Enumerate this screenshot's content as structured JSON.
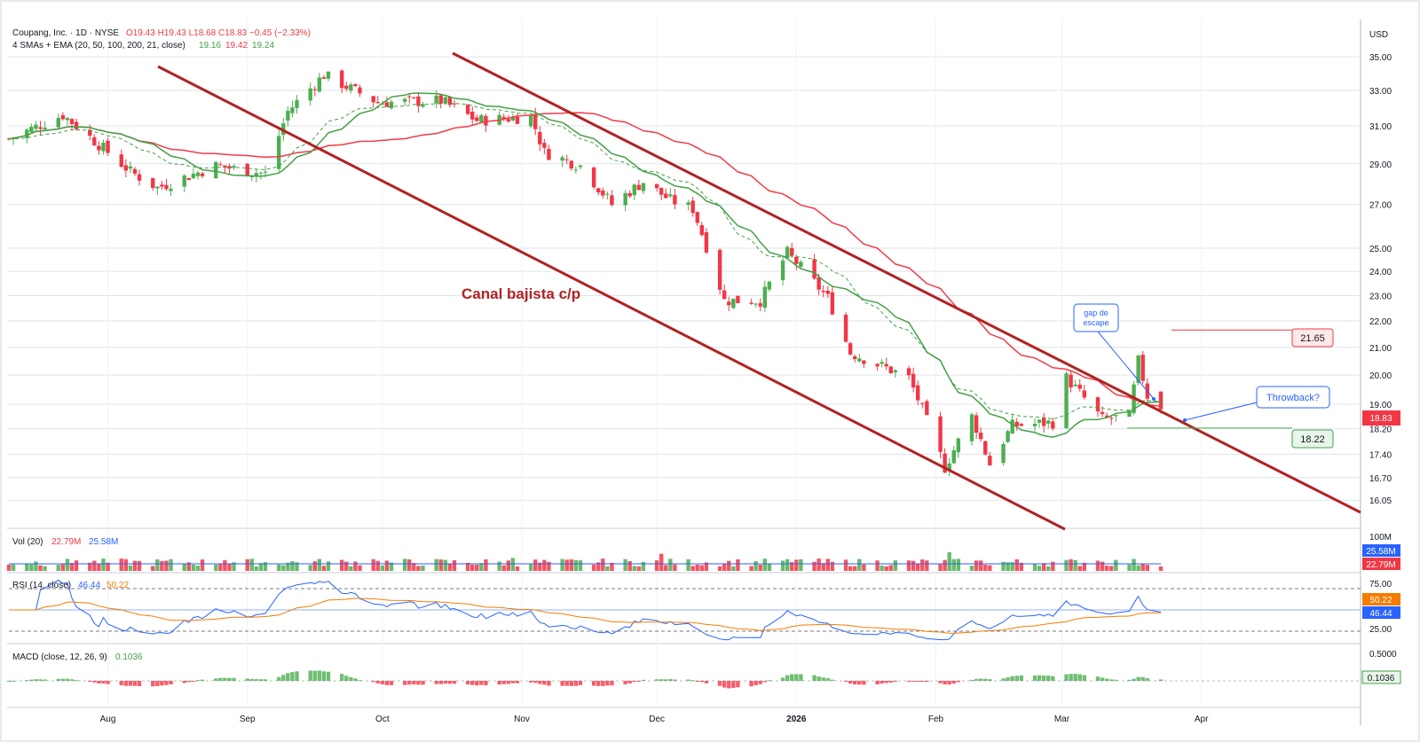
{
  "colors": {
    "up": "#4caf50",
    "down": "#f23645",
    "sma20": "#43a047",
    "sma50": "#ef3b46",
    "ema21": "#43a047",
    "channel": "#b22222",
    "rsi": "#2962ff",
    "rsi_ma": "#f57c00",
    "vol_ma": "#2962ff",
    "axis_text": "#131722",
    "grid": "#e0e3eb",
    "callout_blue": "#2962ff"
  },
  "header": {
    "symbol_line": "Coupang, Inc. · 1D · NYSE",
    "ohlc": "O19.43  H19.43  L18.68  C18.83  −0.45 (−2.33%)",
    "ma_label": "4 SMAs + EMA (20, 50, 100, 200, 21, close)",
    "ma_v1": "19.16",
    "ma_v2": "19.42",
    "ma_v3": "19.24"
  },
  "axis": {
    "currency": "USD",
    "price_ticks": [
      "35.00",
      "33.00",
      "31.00",
      "29.00",
      "27.00",
      "25.00",
      "24.00",
      "23.00",
      "22.00",
      "21.00",
      "20.00",
      "19.00",
      "18.20",
      "17.40",
      "16.70",
      "16.05"
    ],
    "x_labels": [
      "Aug",
      "Sep",
      "Oct",
      "Nov",
      "Dec",
      "2026",
      "Feb",
      "Mar",
      "Apr"
    ],
    "last_price": "18.83"
  },
  "annotations": {
    "channel_label": "Canal bajista c/p",
    "gap_line1": "gap de",
    "gap_line2": "escape",
    "throwback": "Throwback?",
    "resistance": "21.65",
    "support": "18.22"
  },
  "volume": {
    "label": "Vol (20)",
    "v1": "22.79M",
    "v2": "25.58M",
    "tick": "100M",
    "tag_ma": "25.58M",
    "tag_vol": "22.79M"
  },
  "rsi": {
    "label": "RSI (14, close)",
    "v1": "46.44",
    "v2": "50.22",
    "ticks": [
      "75.00",
      "25.00"
    ],
    "tag_ma": "50.22",
    "tag_rsi": "46.44"
  },
  "macd": {
    "label": "MACD (close, 12, 26, 9)",
    "v1": "0.1036",
    "tick": "0.5000",
    "tag": "0.1036"
  },
  "chart_data": {
    "type": "candlestick",
    "title": "Coupang, Inc. · 1D · NYSE",
    "y_scale": "log",
    "ylim": [
      15.6,
      36.0
    ],
    "key_points": [
      {
        "date": "2025-07-10",
        "close": 30.3
      },
      {
        "date": "2025-07-22",
        "close": 31.6
      },
      {
        "date": "2025-08-06",
        "close": 28.6
      },
      {
        "date": "2025-08-12",
        "close": 27.8
      },
      {
        "date": "2025-08-25",
        "close": 28.9
      },
      {
        "date": "2025-09-05",
        "close": 28.5
      },
      {
        "date": "2025-09-10",
        "close": 31.8
      },
      {
        "date": "2025-09-18",
        "close": 33.9
      },
      {
        "date": "2025-09-30",
        "close": 32.3
      },
      {
        "date": "2025-10-14",
        "close": 32.4
      },
      {
        "date": "2025-10-22",
        "close": 31.3
      },
      {
        "date": "2025-11-03",
        "close": 31.5
      },
      {
        "date": "2025-11-06",
        "close": 29.6
      },
      {
        "date": "2025-11-14",
        "close": 28.9
      },
      {
        "date": "2025-11-21",
        "close": 27.0
      },
      {
        "date": "2025-11-28",
        "close": 28.1
      },
      {
        "date": "2025-12-04",
        "close": 27.2
      },
      {
        "date": "2025-12-09",
        "close": 26.8
      },
      {
        "date": "2025-12-16",
        "close": 22.8
      },
      {
        "date": "2025-12-24",
        "close": 22.8
      },
      {
        "date": "2025-12-30",
        "close": 24.8
      },
      {
        "date": "2026-01-08",
        "close": 22.9
      },
      {
        "date": "2026-01-13",
        "close": 20.8
      },
      {
        "date": "2026-01-26",
        "close": 19.9
      },
      {
        "date": "2026-02-03",
        "close": 17.0
      },
      {
        "date": "2026-02-09",
        "close": 18.6
      },
      {
        "date": "2026-02-13",
        "close": 17.1
      },
      {
        "date": "2026-02-18",
        "close": 18.3
      },
      {
        "date": "2026-02-27",
        "close": 18.4
      },
      {
        "date": "2026-03-02",
        "close": 19.9
      },
      {
        "date": "2026-03-10",
        "close": 18.5
      },
      {
        "date": "2026-03-16",
        "close": 18.6
      },
      {
        "date": "2026-03-18",
        "close": 20.5
      },
      {
        "date": "2026-03-20",
        "close": 19.28
      },
      {
        "date": "2026-03-23",
        "close": 18.83
      }
    ],
    "levels": [
      {
        "name": "21.65",
        "value": 21.65
      },
      {
        "name": "18.22",
        "value": 18.22
      }
    ],
    "last": {
      "open": 19.43,
      "high": 19.43,
      "low": 18.68,
      "close": 18.83
    }
  }
}
